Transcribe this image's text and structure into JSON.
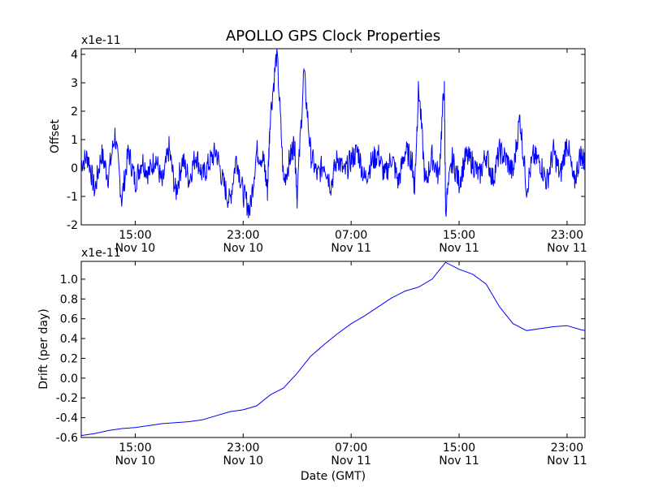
{
  "figure_title": "APOLLO GPS Clock Properties",
  "chart_data": [
    {
      "type": "line",
      "title": "APOLLO GPS Clock Properties",
      "ylabel": "Offset",
      "xlabel": "",
      "scale_label": "x1e-11",
      "ylim": [
        -2,
        4.2
      ],
      "yticks": [
        -2,
        -1,
        0,
        1,
        2,
        3,
        4
      ],
      "ytick_labels": [
        "-2",
        "-1",
        "0",
        "1",
        "2",
        "3",
        "4"
      ],
      "xlim": [
        "Nov 10 11:00",
        "Nov 12 00:20"
      ],
      "xticks": [
        {
          "time": "Nov 10 15:00",
          "line1": "15:00",
          "line2": "Nov 10"
        },
        {
          "time": "Nov 10 23:00",
          "line1": "23:00",
          "line2": "Nov 10"
        },
        {
          "time": "Nov 11 07:00",
          "line1": "07:00",
          "line2": "Nov 11"
        },
        {
          "time": "Nov 11 15:00",
          "line1": "15:00",
          "line2": "Nov 11"
        },
        {
          "time": "Nov 11 23:00",
          "line1": "23:00",
          "line2": "Nov 11"
        }
      ],
      "grid": false,
      "line_color": "#0000ff",
      "series": [
        {
          "x_hours_from_nov10_0000": [
            11.0,
            11.5,
            12.0,
            12.5,
            13.0,
            13.5,
            14.0,
            14.5,
            15.0,
            15.5,
            16.0,
            16.5,
            17.0,
            17.5,
            18.0,
            18.5,
            19.0,
            19.5,
            20.0,
            20.5,
            21.0,
            21.5,
            22.0,
            22.5,
            23.0,
            23.5,
            24.0,
            24.5,
            24.8,
            25.0,
            25.5,
            26.0,
            26.5,
            26.8,
            27.0,
            27.5,
            28.0,
            28.5,
            29.0,
            29.5,
            30.0,
            30.5,
            31.0,
            31.5,
            32.0,
            32.5,
            33.0,
            33.5,
            34.0,
            34.5,
            35.0,
            35.5,
            35.7,
            36.0,
            36.5,
            37.0,
            37.5,
            37.9,
            38.0,
            38.5,
            39.0,
            39.5,
            40.0,
            40.5,
            41.0,
            41.5,
            42.0,
            42.5,
            43.0,
            43.5,
            44.0,
            44.5,
            45.0,
            45.5,
            46.0,
            46.5,
            47.0,
            47.5,
            48.0,
            48.3
          ],
          "values": [
            0.2,
            0.4,
            -0.8,
            0.5,
            -0.3,
            1.2,
            -1.1,
            0.6,
            -0.5,
            0.3,
            -0.2,
            0.4,
            -0.6,
            0.7,
            -0.9,
            0.3,
            -0.4,
            0.5,
            -0.3,
            0.2,
            0.6,
            -0.5,
            -1.2,
            0.4,
            -0.9,
            -1.5,
            0.6,
            0.3,
            -0.8,
            1.8,
            4.1,
            -0.5,
            0.4,
            0.9,
            -1.0,
            3.4,
            0.5,
            -0.3,
            0.2,
            -0.6,
            0.4,
            -0.2,
            0.3,
            0.6,
            -0.4,
            0.2,
            0.5,
            -0.3,
            0.4,
            -0.5,
            0.6,
            0.3,
            -0.7,
            2.9,
            -0.6,
            0.4,
            -0.3,
            3.0,
            -1.4,
            0.3,
            -0.5,
            0.4,
            0.2,
            -0.3,
            0.5,
            -0.4,
            0.6,
            0.3,
            -0.2,
            1.8,
            -0.7,
            0.4,
            0.2,
            -0.5,
            0.6,
            -0.3,
            1.0,
            -0.6,
            0.5,
            0.2
          ]
        }
      ]
    },
    {
      "type": "line",
      "title": "",
      "ylabel": "Drift (per day)",
      "xlabel": "Date (GMT)",
      "scale_label": "x1e-11",
      "ylim": [
        -0.6,
        1.18
      ],
      "yticks": [
        -0.6,
        -0.4,
        -0.2,
        0.0,
        0.2,
        0.4,
        0.6,
        0.8,
        1.0
      ],
      "ytick_labels": [
        "-0.6",
        "-0.4",
        "-0.2",
        "0.0",
        "0.2",
        "0.4",
        "0.6",
        "0.8",
        "1.0"
      ],
      "xlim": [
        "Nov 10 11:00",
        "Nov 12 00:20"
      ],
      "xticks": [
        {
          "time": "Nov 10 15:00",
          "line1": "15:00",
          "line2": "Nov 10"
        },
        {
          "time": "Nov 10 23:00",
          "line1": "23:00",
          "line2": "Nov 10"
        },
        {
          "time": "Nov 11 07:00",
          "line1": "07:00",
          "line2": "Nov 11"
        },
        {
          "time": "Nov 11 15:00",
          "line1": "15:00",
          "line2": "Nov 11"
        },
        {
          "time": "Nov 11 23:00",
          "line1": "23:00",
          "line2": "Nov 11"
        }
      ],
      "grid": false,
      "line_color": "#0000ff",
      "series": [
        {
          "x_hours_from_nov10_0000": [
            11.0,
            12.0,
            13.0,
            14.0,
            15.0,
            16.0,
            17.0,
            18.0,
            19.0,
            20.0,
            21.0,
            22.0,
            23.0,
            24.0,
            25.0,
            26.0,
            27.0,
            28.0,
            29.0,
            30.0,
            31.0,
            32.0,
            33.0,
            34.0,
            35.0,
            36.0,
            37.0,
            38.0,
            39.0,
            40.0,
            41.0,
            42.0,
            43.0,
            44.0,
            45.0,
            46.0,
            47.0,
            48.0,
            48.33
          ],
          "values": [
            -0.58,
            -0.56,
            -0.53,
            -0.51,
            -0.5,
            -0.48,
            -0.46,
            -0.45,
            -0.44,
            -0.42,
            -0.38,
            -0.34,
            -0.32,
            -0.28,
            -0.17,
            -0.1,
            0.05,
            0.22,
            0.34,
            0.45,
            0.55,
            0.63,
            0.72,
            0.81,
            0.88,
            0.92,
            1.0,
            1.17,
            1.1,
            1.05,
            0.95,
            0.72,
            0.55,
            0.48,
            0.5,
            0.52,
            0.53,
            0.49,
            0.48
          ]
        }
      ]
    }
  ]
}
